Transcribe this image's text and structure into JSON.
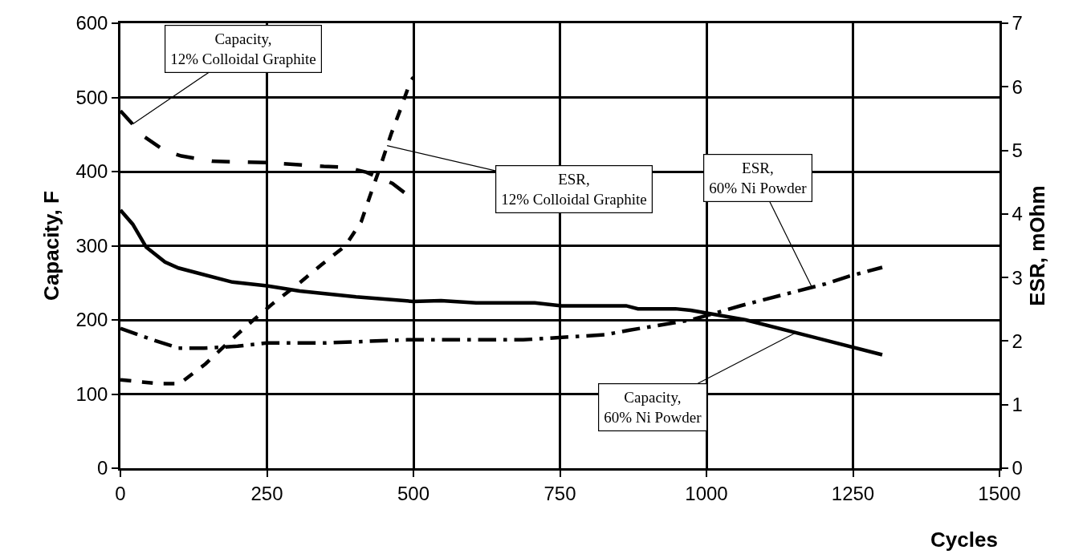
{
  "chart_data": {
    "type": "line",
    "xlabel": "Cycles",
    "ylabel": "Capacity, F",
    "y2label": "ESR, mOhm",
    "xlim": [
      0,
      1500
    ],
    "xticks": [
      0,
      250,
      500,
      750,
      1000,
      1250,
      1500
    ],
    "ylim": [
      0,
      600
    ],
    "yticks": [
      0,
      100,
      200,
      300,
      400,
      500,
      600
    ],
    "y2lim": [
      0,
      7
    ],
    "y2ticks": [
      0,
      1,
      2,
      3,
      4,
      5,
      6,
      7
    ],
    "grid": true,
    "marker": "none",
    "series": [
      {
        "color": "#000000",
        "line_style": "dashed",
        "x": [
          0,
          39,
          76,
          104,
          156,
          250,
          347,
          384,
          420,
          464,
          499
        ],
        "values": [
          482,
          448,
          428,
          421,
          414,
          412,
          407,
          406,
          399,
          384,
          363
        ]
      },
      {
        "color": "#000000",
        "line_style": "dotted",
        "axis": "y2",
        "x": [
          0,
          67,
          101,
          145,
          182,
          223,
          260,
          301,
          343,
          384,
          411,
          425,
          444,
          462,
          478,
          495,
          500
        ],
        "values": [
          1.39,
          1.33,
          1.33,
          1.64,
          1.96,
          2.3,
          2.59,
          2.88,
          3.2,
          3.5,
          3.88,
          4.26,
          4.76,
          5.26,
          5.65,
          6.09,
          6.15
        ]
      },
      {
        "color": "#000000",
        "line_style": "solid",
        "x": [
          0,
          21,
          44,
          76,
          99,
          191,
          250,
          306,
          402,
          499,
          547,
          607,
          707,
          753,
          863,
          883,
          947,
          973,
          1067,
          1300
        ],
        "values": [
          348,
          329,
          298,
          278,
          270,
          251,
          246,
          239,
          231,
          225,
          226,
          223,
          223,
          219,
          219,
          215,
          215,
          213,
          200,
          153
        ]
      },
      {
        "color": "#000000",
        "line_style": "dashdot",
        "axis": "y2",
        "x": [
          0,
          55,
          99,
          143,
          200,
          250,
          347,
          489,
          577,
          687,
          827,
          867,
          973,
          1060,
          1203,
          1243,
          1300
        ],
        "values": [
          2.2,
          2.02,
          1.89,
          1.89,
          1.92,
          1.97,
          1.97,
          2.02,
          2.02,
          2.02,
          2.1,
          2.17,
          2.33,
          2.56,
          2.9,
          3.02,
          3.16
        ]
      }
    ],
    "annotations": [
      {
        "text": "Capacity,\n12% Colloidal Graphite",
        "x": 21,
        "y": 464
      },
      {
        "text": "ESR,\n12% Colloidal Graphite",
        "x": 455,
        "y": 435
      },
      {
        "text": "ESR,\n60% Ni Powder",
        "x": 1180,
        "y": 244
      },
      {
        "text": "Capacity,\n60% Ni Powder",
        "x": 1153,
        "y": 183
      }
    ]
  }
}
